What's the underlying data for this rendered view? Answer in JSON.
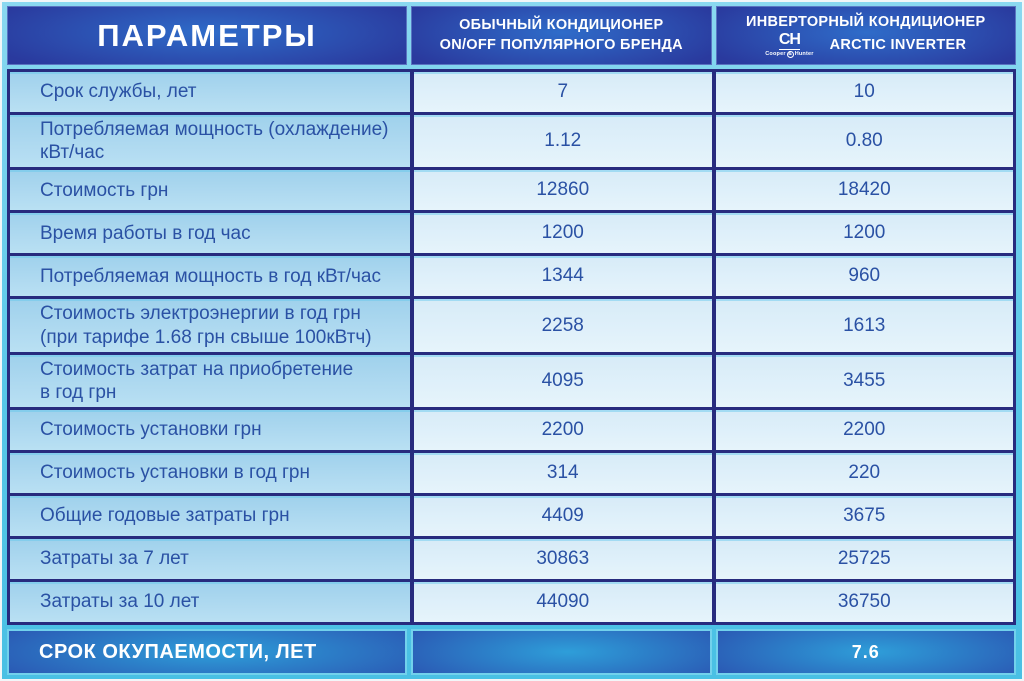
{
  "colors": {
    "frame_cyan": "#56c7e8",
    "border_navy": "#272b7e",
    "header_navy": "#2a3a9e",
    "header_glow": "#2f6cc9",
    "label_cell_bg": "#aed9f0",
    "value_cell_bg": "#dff0fa",
    "cell_text_blue": "#2a51a4",
    "footer_glow": "#2e9ed9",
    "footer_border_cyan": "#72d1ec",
    "white": "#ffffff"
  },
  "header": {
    "params_title": "ПАРАМЕТРЫ",
    "regular_line1": "ОБЫЧНЫЙ КОНДИЦИОНЕР",
    "regular_line2": "ON/OFF ПОПУЛЯРНОГО БРЕНДА",
    "inverter_line1": "ИНВЕРТОРНЫЙ КОНДИЦИОНЕР",
    "inverter_line2": "ARCTIC INVERTER",
    "logo": {
      "initials": "CH",
      "sub_left": "Cooper",
      "amp": "&",
      "sub_right": "Hunter"
    }
  },
  "table": {
    "rows": [
      {
        "label": "Срок службы, лет",
        "regular": "7",
        "inverter": "10"
      },
      {
        "label": "Потребляемая мощность (охлаждение)\nкВт/час",
        "regular": "1.12",
        "inverter": "0.80"
      },
      {
        "label": "Стоимость грн",
        "regular": "12860",
        "inverter": "18420"
      },
      {
        "label": "Время работы в год час",
        "regular": "1200",
        "inverter": "1200"
      },
      {
        "label": "Потребляемая мощность в год кВт/час",
        "regular": "1344",
        "inverter": "960"
      },
      {
        "label": "Стоимость электроэнергии в год грн\n(при тарифе 1.68 грн свыше 100кВтч)",
        "regular": "2258",
        "inverter": "1613"
      },
      {
        "label": "Стоимость затрат на приобретение\nв год грн",
        "regular": "4095",
        "inverter": "3455"
      },
      {
        "label": "Стоимость установки грн",
        "regular": "2200",
        "inverter": "2200"
      },
      {
        "label": "Стоимость установки в год грн",
        "regular": "314",
        "inverter": "220"
      },
      {
        "label": "Общие годовые затраты  грн",
        "regular": "4409",
        "inverter": "3675"
      },
      {
        "label": "Затраты за 7 лет",
        "regular": "30863",
        "inverter": "25725"
      },
      {
        "label": "Затраты за 10 лет",
        "regular": "44090",
        "inverter": "36750"
      }
    ]
  },
  "footer": {
    "label": "СРОК ОКУПАЕМОСТИ, ЛЕТ",
    "regular": "",
    "inverter": "7.6"
  },
  "chart_data": {
    "type": "table",
    "title": "ПАРАМЕТРЫ",
    "columns": [
      "ПАРАМЕТРЫ",
      "ОБЫЧНЫЙ КОНДИЦИОНЕР ON/OFF ПОПУЛЯРНОГО БРЕНДА",
      "ИНВЕРТОРНЫЙ КОНДИЦИОНЕР C&H ARCTIC INVERTER"
    ],
    "categories": [
      "Срок службы, лет",
      "Потребляемая мощность (охлаждение) кВт/час",
      "Стоимость грн",
      "Время работы в год час",
      "Потребляемая мощность в год кВт/час",
      "Стоимость электроэнергии в год грн (при тарифе 1.68 грн свыше 100кВтч)",
      "Стоимость затрат на приобретение в год грн",
      "Стоимость установки грн",
      "Стоимость установки в год грн",
      "Общие годовые затраты грн",
      "Затраты за 7 лет",
      "Затраты за 10 лет",
      "Срок окупаемости, лет"
    ],
    "series": [
      {
        "name": "Обычный кондиционер ON/OFF популярного бренда",
        "values": [
          7,
          1.12,
          12860,
          1200,
          1344,
          2258,
          4095,
          2200,
          314,
          4409,
          30863,
          44090,
          null
        ]
      },
      {
        "name": "Инверторный кондиционер C&H Arctic Inverter",
        "values": [
          10,
          0.8,
          18420,
          1200,
          960,
          1613,
          3455,
          2200,
          220,
          3675,
          25725,
          36750,
          7.6
        ]
      }
    ]
  }
}
